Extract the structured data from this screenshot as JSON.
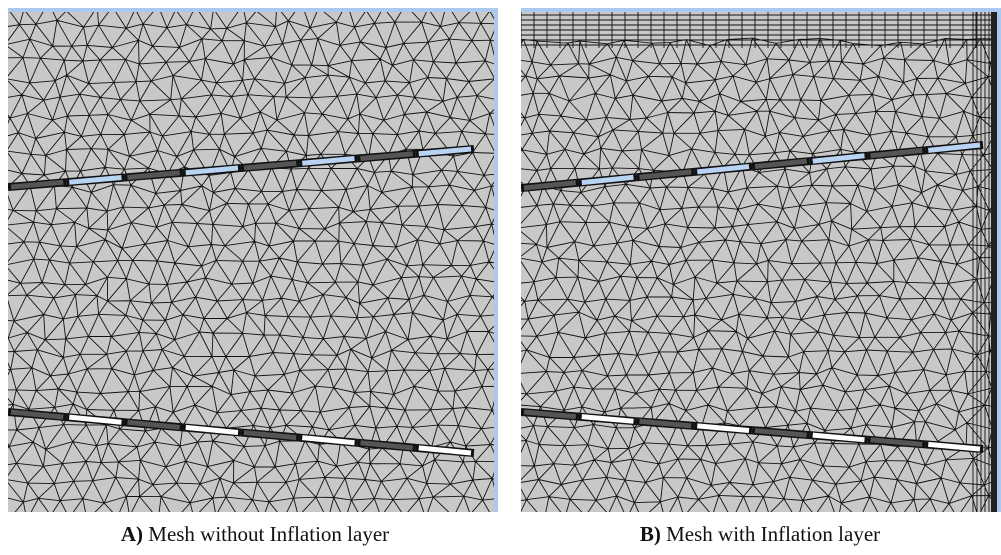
{
  "panels": [
    {
      "label": "A)",
      "caption": "Mesh without Inflation layer"
    },
    {
      "label": "B)",
      "caption": "Mesh with Inflation layer"
    }
  ]
}
